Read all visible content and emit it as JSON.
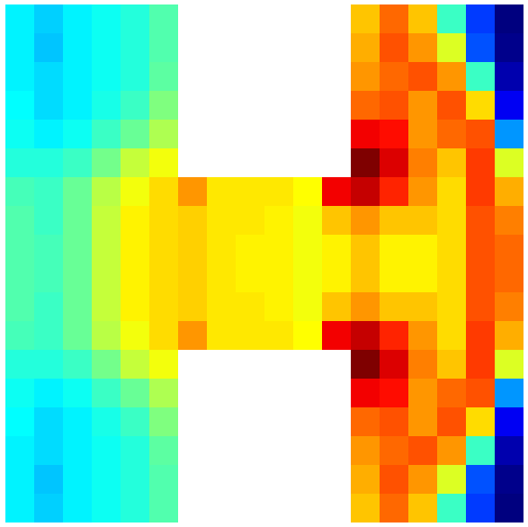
{
  "chart_data": {
    "type": "heatmap",
    "tick_labels": false,
    "cells": [
      [
        0.38,
        0.35,
        0.38,
        0.4,
        0.42,
        0.46,
        null,
        null,
        null,
        null,
        null,
        null,
        0.66,
        0.74,
        0.66,
        0.44,
        0.22,
        0.06
      ],
      [
        0.38,
        0.34,
        0.38,
        0.4,
        0.42,
        0.46,
        null,
        null,
        null,
        null,
        null,
        null,
        0.68,
        0.76,
        0.7,
        0.58,
        0.24,
        0.07
      ],
      [
        0.38,
        0.36,
        0.38,
        0.4,
        0.42,
        0.47,
        null,
        null,
        null,
        null,
        null,
        null,
        0.7,
        0.74,
        0.76,
        0.7,
        0.44,
        0.1
      ],
      [
        0.39,
        0.36,
        0.38,
        0.41,
        0.44,
        0.5,
        null,
        null,
        null,
        null,
        null,
        null,
        0.74,
        0.76,
        0.7,
        0.76,
        0.64,
        0.16
      ],
      [
        0.4,
        0.38,
        0.4,
        0.44,
        0.48,
        0.54,
        null,
        null,
        null,
        null,
        null,
        null,
        0.84,
        0.82,
        0.7,
        0.74,
        0.76,
        0.3
      ],
      [
        0.42,
        0.42,
        0.44,
        0.49,
        0.56,
        0.6,
        null,
        null,
        null,
        null,
        null,
        null,
        0.94,
        0.86,
        0.72,
        0.66,
        0.78,
        0.58
      ],
      [
        0.45,
        0.44,
        0.48,
        0.55,
        0.6,
        0.64,
        0.7,
        0.63,
        0.63,
        0.63,
        0.61,
        0.84,
        0.88,
        0.8,
        0.7,
        0.64,
        0.78,
        0.68
      ],
      [
        0.46,
        0.44,
        0.48,
        0.56,
        0.62,
        0.64,
        0.65,
        0.63,
        0.63,
        0.62,
        0.6,
        0.66,
        0.7,
        0.66,
        0.66,
        0.64,
        0.76,
        0.72
      ],
      [
        0.46,
        0.45,
        0.48,
        0.56,
        0.62,
        0.64,
        0.65,
        0.63,
        0.62,
        0.62,
        0.6,
        0.62,
        0.66,
        0.62,
        0.62,
        0.64,
        0.76,
        0.74
      ],
      [
        0.46,
        0.45,
        0.48,
        0.56,
        0.62,
        0.64,
        0.65,
        0.63,
        0.62,
        0.62,
        0.6,
        0.62,
        0.66,
        0.62,
        0.62,
        0.64,
        0.76,
        0.74
      ],
      [
        0.46,
        0.44,
        0.48,
        0.56,
        0.62,
        0.64,
        0.65,
        0.63,
        0.63,
        0.62,
        0.6,
        0.66,
        0.7,
        0.66,
        0.66,
        0.64,
        0.76,
        0.72
      ],
      [
        0.45,
        0.44,
        0.48,
        0.55,
        0.6,
        0.64,
        0.7,
        0.63,
        0.63,
        0.63,
        0.61,
        0.84,
        0.88,
        0.8,
        0.7,
        0.64,
        0.78,
        0.68
      ],
      [
        0.42,
        0.42,
        0.44,
        0.49,
        0.56,
        0.6,
        null,
        null,
        null,
        null,
        null,
        null,
        0.94,
        0.86,
        0.72,
        0.66,
        0.78,
        0.58
      ],
      [
        0.4,
        0.38,
        0.4,
        0.44,
        0.48,
        0.54,
        null,
        null,
        null,
        null,
        null,
        null,
        0.84,
        0.82,
        0.7,
        0.74,
        0.76,
        0.3
      ],
      [
        0.39,
        0.36,
        0.38,
        0.41,
        0.44,
        0.5,
        null,
        null,
        null,
        null,
        null,
        null,
        0.74,
        0.76,
        0.7,
        0.76,
        0.64,
        0.16
      ],
      [
        0.38,
        0.36,
        0.38,
        0.4,
        0.42,
        0.47,
        null,
        null,
        null,
        null,
        null,
        null,
        0.7,
        0.74,
        0.76,
        0.7,
        0.44,
        0.1
      ],
      [
        0.38,
        0.34,
        0.38,
        0.4,
        0.42,
        0.46,
        null,
        null,
        null,
        null,
        null,
        null,
        0.68,
        0.76,
        0.7,
        0.58,
        0.24,
        0.07
      ],
      [
        0.38,
        0.35,
        0.38,
        0.4,
        0.42,
        0.46,
        null,
        null,
        null,
        null,
        null,
        null,
        0.66,
        0.74,
        0.66,
        0.44,
        0.22,
        0.06
      ]
    ]
  }
}
